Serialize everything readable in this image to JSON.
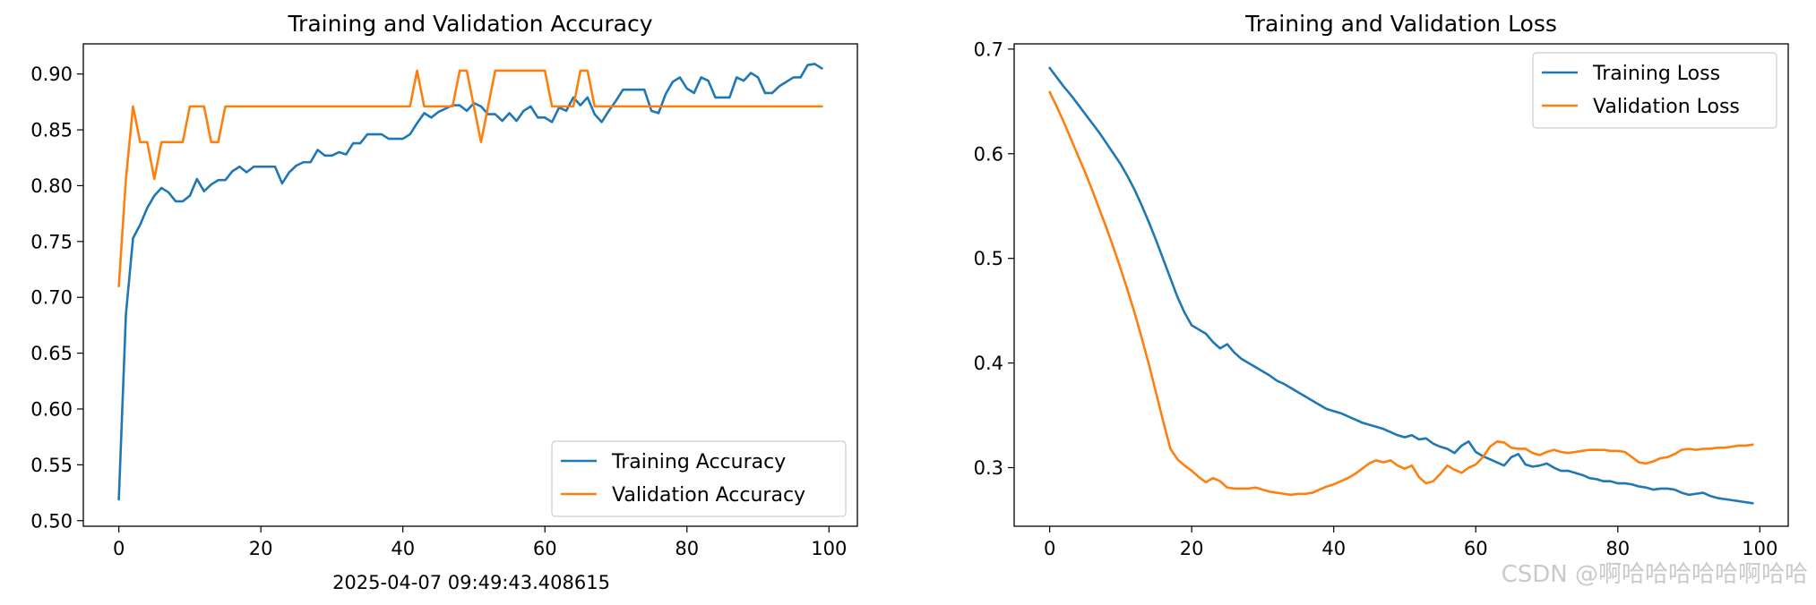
{
  "chart_data": [
    {
      "type": "line",
      "title": "Training and Validation Accuracy",
      "xlim": [
        -5,
        104
      ],
      "ylim": [
        0.495,
        0.927
      ],
      "xticks": [
        0,
        20,
        40,
        60,
        80,
        100
      ],
      "xtick_labels": [
        "0",
        "20",
        "40",
        "60",
        "80",
        "100"
      ],
      "yticks": [
        0.5,
        0.55,
        0.6,
        0.65,
        0.7,
        0.75,
        0.8,
        0.85,
        0.9
      ],
      "ytick_labels": [
        "0.50",
        "0.55",
        "0.60",
        "0.65",
        "0.70",
        "0.75",
        "0.80",
        "0.85",
        "0.90"
      ],
      "legend_position": "lower-right",
      "series": [
        {
          "name": "Training Accuracy",
          "color": "#1f77b4",
          "x": [
            0,
            1,
            2,
            3,
            4,
            5,
            6,
            7,
            8,
            9,
            10,
            11,
            12,
            13,
            14,
            15,
            16,
            17,
            18,
            19,
            20,
            21,
            22,
            23,
            24,
            25,
            26,
            27,
            28,
            29,
            30,
            31,
            32,
            33,
            34,
            35,
            36,
            37,
            38,
            39,
            40,
            41,
            42,
            43,
            44,
            45,
            46,
            47,
            48,
            49,
            50,
            51,
            52,
            53,
            54,
            55,
            56,
            57,
            58,
            59,
            60,
            61,
            62,
            63,
            64,
            65,
            66,
            67,
            68,
            69,
            70,
            71,
            72,
            73,
            74,
            75,
            76,
            77,
            78,
            79,
            80,
            81,
            82,
            83,
            84,
            85,
            86,
            87,
            88,
            89,
            90,
            91,
            92,
            93,
            94,
            95,
            96,
            97,
            98,
            99
          ],
          "values": [
            0.519,
            0.685,
            0.753,
            0.765,
            0.78,
            0.791,
            0.798,
            0.794,
            0.786,
            0.786,
            0.791,
            0.806,
            0.795,
            0.801,
            0.805,
            0.805,
            0.813,
            0.817,
            0.812,
            0.817,
            0.817,
            0.817,
            0.817,
            0.802,
            0.812,
            0.818,
            0.821,
            0.821,
            0.832,
            0.827,
            0.827,
            0.83,
            0.828,
            0.838,
            0.838,
            0.846,
            0.846,
            0.846,
            0.842,
            0.842,
            0.842,
            0.846,
            0.856,
            0.865,
            0.861,
            0.866,
            0.869,
            0.872,
            0.872,
            0.867,
            0.874,
            0.871,
            0.864,
            0.864,
            0.858,
            0.865,
            0.858,
            0.867,
            0.871,
            0.861,
            0.861,
            0.857,
            0.87,
            0.867,
            0.879,
            0.872,
            0.879,
            0.864,
            0.857,
            0.867,
            0.876,
            0.886,
            0.886,
            0.886,
            0.886,
            0.867,
            0.865,
            0.882,
            0.893,
            0.897,
            0.887,
            0.883,
            0.897,
            0.894,
            0.879,
            0.879,
            0.879,
            0.897,
            0.894,
            0.901,
            0.897,
            0.883,
            0.883,
            0.889,
            0.893,
            0.897,
            0.897,
            0.908,
            0.909,
            0.905
          ]
        },
        {
          "name": "Validation Accuracy",
          "color": "#ff7f0e",
          "x": [
            0,
            1,
            2,
            3,
            4,
            5,
            6,
            7,
            8,
            9,
            10,
            11,
            12,
            13,
            14,
            15,
            16,
            17,
            18,
            19,
            20,
            21,
            22,
            23,
            24,
            25,
            26,
            27,
            28,
            29,
            30,
            31,
            32,
            33,
            34,
            35,
            36,
            37,
            38,
            39,
            40,
            41,
            42,
            43,
            44,
            45,
            46,
            47,
            48,
            49,
            50,
            51,
            52,
            53,
            54,
            55,
            56,
            57,
            58,
            59,
            60,
            61,
            62,
            63,
            64,
            65,
            66,
            67,
            68,
            69,
            70,
            71,
            72,
            73,
            74,
            75,
            76,
            77,
            78,
            79,
            80,
            81,
            82,
            83,
            84,
            85,
            86,
            87,
            88,
            89,
            90,
            91,
            92,
            93,
            94,
            95,
            96,
            97,
            98,
            99
          ],
          "values": [
            0.71,
            0.806,
            0.871,
            0.839,
            0.839,
            0.806,
            0.839,
            0.839,
            0.839,
            0.839,
            0.871,
            0.871,
            0.871,
            0.839,
            0.839,
            0.871,
            0.871,
            0.871,
            0.871,
            0.871,
            0.871,
            0.871,
            0.871,
            0.871,
            0.871,
            0.871,
            0.871,
            0.871,
            0.871,
            0.871,
            0.871,
            0.871,
            0.871,
            0.871,
            0.871,
            0.871,
            0.871,
            0.871,
            0.871,
            0.871,
            0.871,
            0.871,
            0.903,
            0.871,
            0.871,
            0.871,
            0.871,
            0.871,
            0.903,
            0.903,
            0.871,
            0.839,
            0.871,
            0.903,
            0.903,
            0.903,
            0.903,
            0.903,
            0.903,
            0.903,
            0.903,
            0.871,
            0.871,
            0.871,
            0.871,
            0.903,
            0.903,
            0.871,
            0.871,
            0.871,
            0.871,
            0.871,
            0.871,
            0.871,
            0.871,
            0.871,
            0.871,
            0.871,
            0.871,
            0.871,
            0.871,
            0.871,
            0.871,
            0.871,
            0.871,
            0.871,
            0.871,
            0.871,
            0.871,
            0.871,
            0.871,
            0.871,
            0.871,
            0.871,
            0.871,
            0.871,
            0.871,
            0.871,
            0.871,
            0.871
          ]
        }
      ]
    },
    {
      "type": "line",
      "title": "Training and Validation Loss",
      "xlim": [
        -5,
        104
      ],
      "ylim": [
        0.244,
        0.705
      ],
      "xticks": [
        0,
        20,
        40,
        60,
        80,
        100
      ],
      "xtick_labels": [
        "0",
        "20",
        "40",
        "60",
        "80",
        "100"
      ],
      "yticks": [
        0.3,
        0.4,
        0.5,
        0.6,
        0.7
      ],
      "ytick_labels": [
        "0.3",
        "0.4",
        "0.5",
        "0.6",
        "0.7"
      ],
      "legend_position": "upper-right",
      "series": [
        {
          "name": "Training Loss",
          "color": "#1f77b4",
          "x": [
            0,
            1,
            2,
            3,
            4,
            5,
            6,
            7,
            8,
            9,
            10,
            11,
            12,
            13,
            14,
            15,
            16,
            17,
            18,
            19,
            20,
            21,
            22,
            23,
            24,
            25,
            26,
            27,
            28,
            29,
            30,
            31,
            32,
            33,
            34,
            35,
            36,
            37,
            38,
            39,
            40,
            41,
            42,
            43,
            44,
            45,
            46,
            47,
            48,
            49,
            50,
            51,
            52,
            53,
            54,
            55,
            56,
            57,
            58,
            59,
            60,
            61,
            62,
            63,
            64,
            65,
            66,
            67,
            68,
            69,
            70,
            71,
            72,
            73,
            74,
            75,
            76,
            77,
            78,
            79,
            80,
            81,
            82,
            83,
            84,
            85,
            86,
            87,
            88,
            89,
            90,
            91,
            92,
            93,
            94,
            95,
            96,
            97,
            98,
            99
          ],
          "values": [
            0.682,
            0.673,
            0.664,
            0.656,
            0.647,
            0.638,
            0.629,
            0.62,
            0.61,
            0.6,
            0.59,
            0.578,
            0.565,
            0.55,
            0.534,
            0.517,
            0.499,
            0.481,
            0.463,
            0.448,
            0.436,
            0.432,
            0.428,
            0.42,
            0.414,
            0.418,
            0.41,
            0.404,
            0.4,
            0.396,
            0.392,
            0.388,
            0.383,
            0.38,
            0.376,
            0.372,
            0.368,
            0.364,
            0.36,
            0.356,
            0.354,
            0.352,
            0.349,
            0.346,
            0.343,
            0.341,
            0.339,
            0.337,
            0.334,
            0.331,
            0.329,
            0.331,
            0.327,
            0.328,
            0.323,
            0.32,
            0.318,
            0.314,
            0.321,
            0.325,
            0.315,
            0.311,
            0.308,
            0.305,
            0.302,
            0.31,
            0.313,
            0.303,
            0.301,
            0.302,
            0.304,
            0.3,
            0.297,
            0.297,
            0.295,
            0.293,
            0.29,
            0.289,
            0.287,
            0.287,
            0.285,
            0.285,
            0.284,
            0.282,
            0.281,
            0.279,
            0.28,
            0.28,
            0.279,
            0.276,
            0.274,
            0.275,
            0.276,
            0.273,
            0.271,
            0.27,
            0.269,
            0.268,
            0.267,
            0.266
          ]
        },
        {
          "name": "Validation Loss",
          "color": "#ff7f0e",
          "x": [
            0,
            1,
            2,
            3,
            4,
            5,
            6,
            7,
            8,
            9,
            10,
            11,
            12,
            13,
            14,
            15,
            16,
            17,
            18,
            19,
            20,
            21,
            22,
            23,
            24,
            25,
            26,
            27,
            28,
            29,
            30,
            31,
            32,
            33,
            34,
            35,
            36,
            37,
            38,
            39,
            40,
            41,
            42,
            43,
            44,
            45,
            46,
            47,
            48,
            49,
            50,
            51,
            52,
            53,
            54,
            55,
            56,
            57,
            58,
            59,
            60,
            61,
            62,
            63,
            64,
            65,
            66,
            67,
            68,
            69,
            70,
            71,
            72,
            73,
            74,
            75,
            76,
            77,
            78,
            79,
            80,
            81,
            82,
            83,
            84,
            85,
            86,
            87,
            88,
            89,
            90,
            91,
            92,
            93,
            94,
            95,
            96,
            97,
            98,
            99
          ],
          "values": [
            0.659,
            0.645,
            0.63,
            0.614,
            0.598,
            0.582,
            0.565,
            0.547,
            0.529,
            0.51,
            0.49,
            0.469,
            0.447,
            0.423,
            0.398,
            0.371,
            0.344,
            0.318,
            0.308,
            0.302,
            0.297,
            0.291,
            0.286,
            0.29,
            0.287,
            0.281,
            0.28,
            0.28,
            0.28,
            0.281,
            0.279,
            0.277,
            0.276,
            0.275,
            0.274,
            0.275,
            0.275,
            0.276,
            0.279,
            0.282,
            0.284,
            0.287,
            0.29,
            0.294,
            0.299,
            0.304,
            0.307,
            0.305,
            0.307,
            0.302,
            0.299,
            0.302,
            0.291,
            0.285,
            0.287,
            0.294,
            0.302,
            0.298,
            0.295,
            0.3,
            0.303,
            0.31,
            0.32,
            0.325,
            0.324,
            0.319,
            0.318,
            0.318,
            0.314,
            0.312,
            0.315,
            0.317,
            0.315,
            0.314,
            0.315,
            0.316,
            0.317,
            0.317,
            0.317,
            0.316,
            0.316,
            0.315,
            0.31,
            0.305,
            0.304,
            0.306,
            0.309,
            0.31,
            0.313,
            0.317,
            0.318,
            0.317,
            0.318,
            0.318,
            0.319,
            0.319,
            0.32,
            0.321,
            0.321,
            0.322
          ]
        }
      ]
    }
  ],
  "timestamp": "2025-04-07 09:49:43.408615",
  "watermark": "CSDN @啊哈哈哈哈哈啊哈哈"
}
